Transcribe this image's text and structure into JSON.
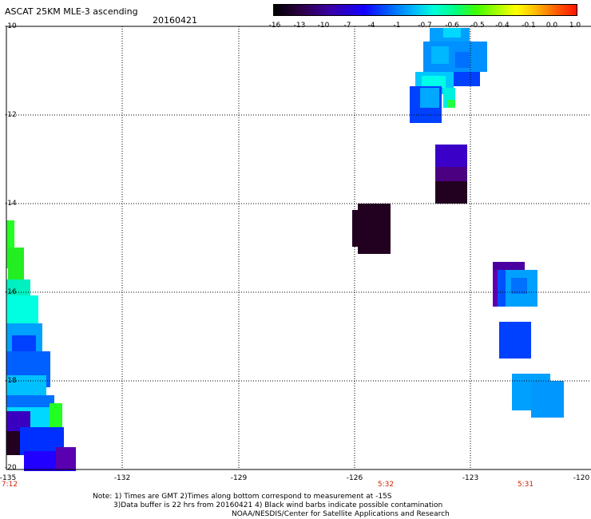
{
  "header": {
    "title": "ASCAT 25KM MLE-3 ascending",
    "date": "20160421"
  },
  "colorbar": {
    "ticks": [
      "-16",
      "-13",
      "-10",
      "-7",
      "-4",
      "-1",
      "-0.7",
      "-0.6",
      "-0.5",
      "-0.4",
      "-0.1",
      "0.0",
      "1.0"
    ]
  },
  "map": {
    "lat_labels": [
      "-10",
      "-12",
      "-14",
      "-16",
      "-18",
      "-20"
    ],
    "lon_labels": [
      "-135",
      "-132",
      "-129",
      "-126",
      "-123",
      "-120"
    ],
    "time_labels": [
      "7:12",
      "5:32",
      "5:31"
    ]
  },
  "notes": {
    "line1": "Note: 1) Times are GMT 2)Times along bottom correspond to measurement at -15S",
    "line2": "3)Data buffer is 22 hrs from 20160421 4) Black wind barbs indicate possible contamination",
    "line3": "NOAA/NESDIS/Center for Satellite Applications and Research"
  },
  "colors": {
    "deep_purple": "#22001f",
    "purple": "#5a0090",
    "blue": "#0033ff",
    "light_blue": "#00a0ff",
    "cyan": "#00f0ff",
    "green": "#22ff22"
  }
}
